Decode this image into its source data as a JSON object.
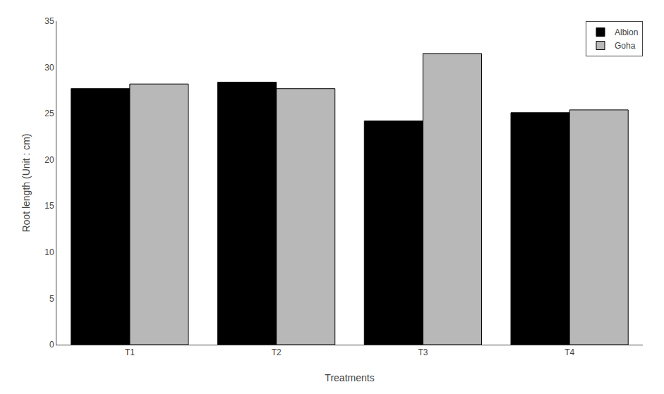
{
  "chart_data": {
    "type": "bar",
    "categories": [
      "T1",
      "T2",
      "T3",
      "T4"
    ],
    "series": [
      {
        "name": "Albion",
        "color": "#000000",
        "values": [
          27.7,
          28.4,
          24.2,
          25.1
        ]
      },
      {
        "name": "Goha",
        "color": "#b8b8b8",
        "values": [
          28.2,
          27.7,
          31.5,
          25.4
        ]
      }
    ],
    "xlabel": "Treatments",
    "ylabel": "Root length (Unit : cm)",
    "ylim": [
      0,
      35
    ],
    "yticks": [
      0,
      5,
      10,
      15,
      20,
      25,
      30,
      35
    ],
    "legend": "upper right",
    "grid": false
  }
}
